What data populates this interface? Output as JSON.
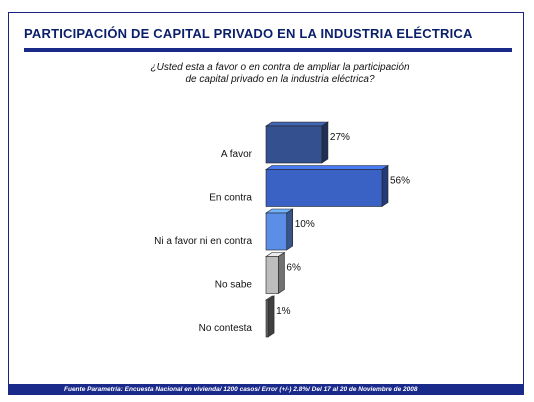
{
  "title": "PARTICIPACIÓN DE CAPITAL PRIVADO EN LA INDUSTRIA ELÉCTRICA",
  "question": {
    "line1": "¿Usted esta a favor o en contra de ampliar la participación",
    "line2": "de capital privado en la industria eléctrica?"
  },
  "footer": "Fuente Parametría: Encuesta Nacional en vivienda/ 1200 casos/ Error (+/-) 2.8%/ Del 17 al 20 de Noviembre de 2008",
  "chart_data": {
    "type": "bar",
    "orientation": "horizontal",
    "style": "3d",
    "categories": [
      "A favor",
      "En contra",
      "Ni a favor ni en contra",
      "No sabe",
      "No contesta"
    ],
    "values": [
      27,
      56,
      10,
      6,
      1
    ],
    "value_labels": [
      "27%",
      "56%",
      "10%",
      "6%",
      "1%"
    ],
    "colors": [
      "#34508f",
      "#3a62c4",
      "#5b8ee6",
      "#bdbdbd",
      "#6b6b6b"
    ],
    "xlim": [
      0,
      56
    ],
    "grid": false,
    "legend": "none"
  }
}
